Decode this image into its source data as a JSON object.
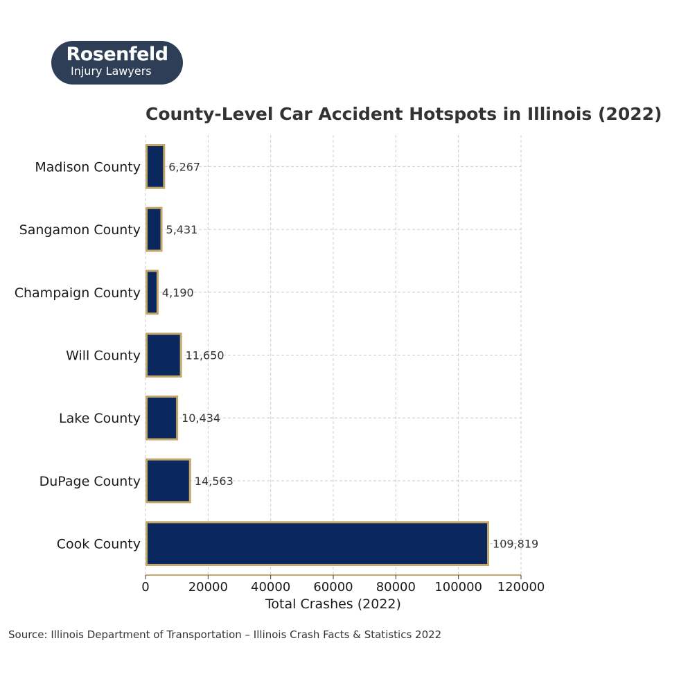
{
  "logo": {
    "brand": "Rosenfeld",
    "tagline": "Injury Lawyers"
  },
  "source": "Source: Illinois Department of Transportation – Illinois Crash Facts & Statistics 2022",
  "colors": {
    "bar_fill": "#0b285e",
    "bar_edge": "#c2a66a",
    "axis": "#c2a66a",
    "grid": "#cccccc",
    "logo_bg": "#2e3e56"
  },
  "chart_data": {
    "type": "bar",
    "orientation": "horizontal",
    "title": "County-Level Car Accident Hotspots in Illinois (2022)",
    "xlabel": "Total Crashes (2022)",
    "ylabel": "",
    "categories": [
      "Madison County",
      "Sangamon County",
      "Champaign County",
      "Will County",
      "Lake County",
      "DuPage County",
      "Cook County"
    ],
    "values": [
      6267,
      5431,
      4190,
      11650,
      10434,
      14563,
      109819
    ],
    "value_labels": [
      "6,267",
      "5,431",
      "4,190",
      "11,650",
      "10,434",
      "14,563",
      "109,819"
    ],
    "xlim": [
      0,
      120000
    ],
    "xticks": [
      0,
      20000,
      40000,
      60000,
      80000,
      100000,
      120000
    ],
    "xtick_labels": [
      "0",
      "20000",
      "40000",
      "60000",
      "80000",
      "100000",
      "120000"
    ],
    "grid": true
  }
}
